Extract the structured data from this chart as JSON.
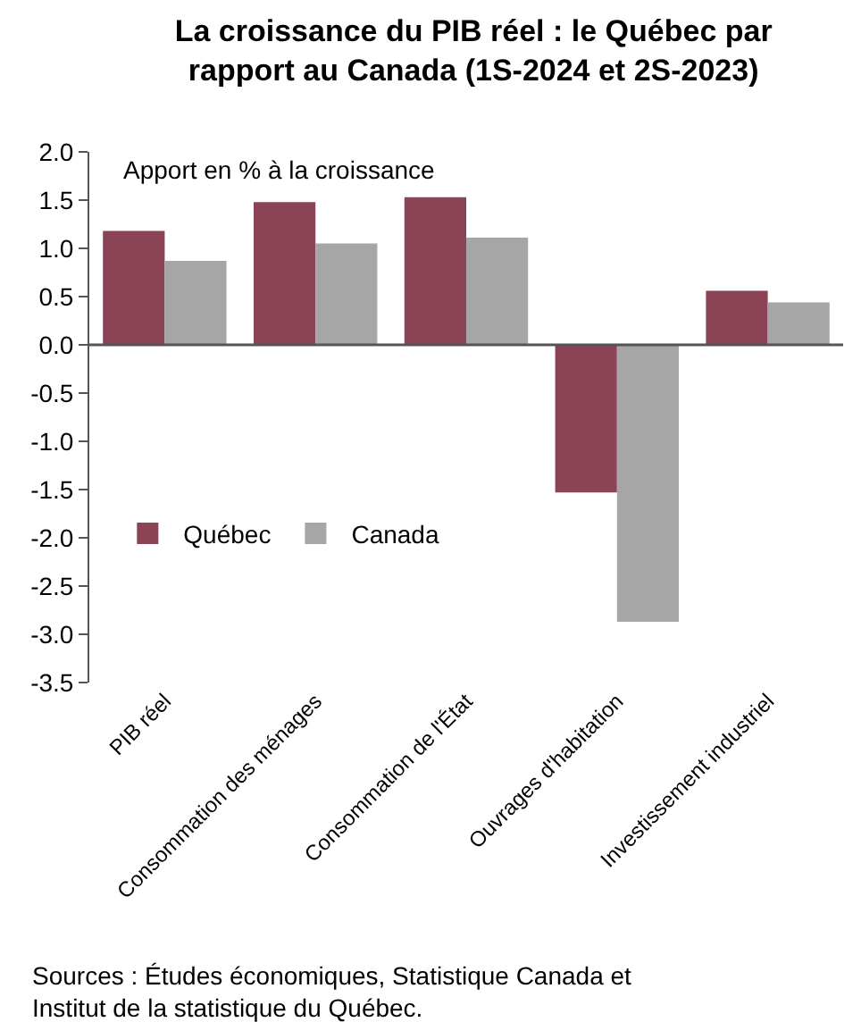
{
  "chart_data": {
    "type": "bar",
    "title": "La croissance du PIB réel : le Québec par rapport au Canada (1S-2024 et 2S-2023)",
    "categories": [
      "PIB réel",
      "Consommation des ménages",
      "Consommation de l'État",
      "Ouvrages d'habitation",
      "Investissement industriel"
    ],
    "series": [
      {
        "name": "Québec",
        "color": "#8b4356",
        "values": [
          1.18,
          1.48,
          1.53,
          -1.53,
          0.56
        ]
      },
      {
        "name": "Canada",
        "color": "#a6a6a6",
        "values": [
          0.87,
          1.05,
          1.11,
          -2.87,
          0.44
        ]
      }
    ],
    "ylim": [
      -3.5,
      2.0
    ],
    "yticks": [
      {
        "value": 2.0,
        "label": "2.0"
      },
      1.5,
      {
        "value": 1.0,
        "label": "1.0"
      },
      0.5,
      {
        "value": 0.0,
        "label": "0.0"
      },
      -0.5,
      {
        "value": -1.0,
        "label": "-1.0"
      },
      -1.5,
      {
        "value": -2.0,
        "label": "-2.0"
      },
      -2.5,
      {
        "value": -3.0,
        "label": "-3.0"
      },
      -3.5
    ],
    "legend": "left",
    "ref_lines": [
      {
        "axis": "y",
        "value": 0,
        "color": "#555555"
      }
    ],
    "annotations": [
      "Apport en % à la croissance",
      "Sources : Études économiques, Statistique Canada et Institut de la statistique du Québec."
    ]
  }
}
